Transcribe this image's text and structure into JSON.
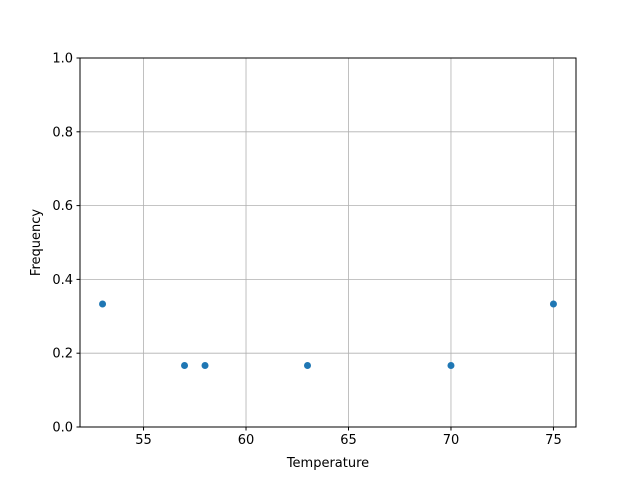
{
  "chart_data": {
    "type": "scatter",
    "title": "",
    "xlabel": "Temperature",
    "ylabel": "Frequency",
    "xlim": [
      51.9,
      76.1
    ],
    "ylim": [
      0,
      1
    ],
    "xticks": [
      55,
      60,
      65,
      70,
      75
    ],
    "yticks": [
      0.0,
      0.2,
      0.4,
      0.6,
      0.8,
      1.0
    ],
    "xtick_labels": [
      "55",
      "60",
      "65",
      "70",
      "75"
    ],
    "ytick_labels": [
      "0.0",
      "0.2",
      "0.4",
      "0.6",
      "0.8",
      "1.0"
    ],
    "grid": true,
    "color": "#1f77b4",
    "points": [
      {
        "x": 53,
        "y": 0.3333
      },
      {
        "x": 57,
        "y": 0.1667
      },
      {
        "x": 58,
        "y": 0.1667
      },
      {
        "x": 63,
        "y": 0.1667
      },
      {
        "x": 70,
        "y": 0.1667
      },
      {
        "x": 75,
        "y": 0.3333
      }
    ]
  }
}
